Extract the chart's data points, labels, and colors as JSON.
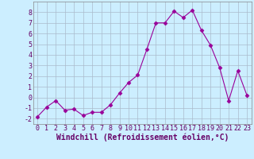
{
  "x": [
    0,
    1,
    2,
    3,
    4,
    5,
    6,
    7,
    8,
    9,
    10,
    11,
    12,
    13,
    14,
    15,
    16,
    17,
    18,
    19,
    20,
    21,
    22,
    23
  ],
  "y": [
    -1.8,
    -0.9,
    -0.3,
    -1.2,
    -1.1,
    -1.7,
    -1.4,
    -1.4,
    -0.7,
    0.4,
    1.4,
    2.1,
    4.5,
    7.0,
    7.0,
    8.1,
    7.5,
    8.2,
    6.3,
    4.9,
    2.8,
    -0.3,
    2.5,
    0.2
  ],
  "line_color": "#990099",
  "marker": "D",
  "marker_size": 2.5,
  "bg_color": "#cceeff",
  "grid_color": "#aabbcc",
  "xlabel": "Windchill (Refroidissement éolien,°C)",
  "xlim": [
    -0.5,
    23.5
  ],
  "ylim": [
    -2.5,
    9.0
  ],
  "yticks": [
    -2,
    -1,
    0,
    1,
    2,
    3,
    4,
    5,
    6,
    7,
    8
  ],
  "xticks": [
    0,
    1,
    2,
    3,
    4,
    5,
    6,
    7,
    8,
    9,
    10,
    11,
    12,
    13,
    14,
    15,
    16,
    17,
    18,
    19,
    20,
    21,
    22,
    23
  ],
  "tick_fontsize": 6,
  "xlabel_fontsize": 7
}
